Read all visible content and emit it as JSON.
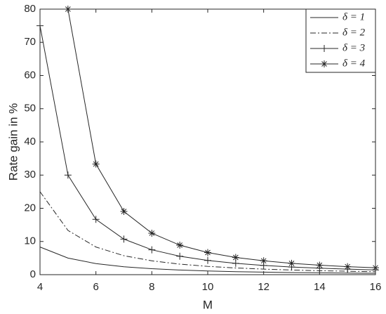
{
  "chart_data": {
    "type": "line",
    "x_label": "M",
    "y_label": "Rate gain in %",
    "x": [
      4,
      5,
      6,
      7,
      8,
      9,
      10,
      11,
      12,
      13,
      14,
      15,
      16
    ],
    "series": [
      {
        "name": "δ = 1",
        "color": "#262626",
        "style": "solid",
        "marker": "none",
        "values": [
          8.33,
          5,
          3.33,
          2.38,
          1.79,
          1.39,
          1.11,
          0.91,
          0.76,
          0.64,
          0.55,
          0.48,
          0.42
        ]
      },
      {
        "name": "δ = 2",
        "color": "#262626",
        "style": "dashdot",
        "marker": "none",
        "values": [
          25,
          13.33,
          8.33,
          5.71,
          4.17,
          3.17,
          2.5,
          2.02,
          1.67,
          1.4,
          1.19,
          1.03,
          0.89
        ]
      },
      {
        "name": "δ = 3",
        "color": "#262626",
        "style": "solid",
        "marker": "plus",
        "values": [
          75,
          30,
          16.67,
          10.71,
          7.5,
          5.56,
          4.29,
          3.41,
          2.78,
          2.31,
          1.95,
          1.67,
          1.44
        ]
      },
      {
        "name": "δ = 4",
        "color": "#262626",
        "style": "solid",
        "marker": "star",
        "values": [
          null,
          80,
          33.33,
          19.05,
          12.5,
          8.89,
          6.67,
          5.19,
          4.17,
          3.42,
          2.86,
          2.42,
          2.08
        ]
      }
    ],
    "xlim": [
      4,
      16
    ],
    "xticks": [
      4,
      6,
      8,
      10,
      12,
      14,
      16
    ],
    "ylim": [
      0,
      80
    ],
    "yticks": [
      0,
      10,
      20,
      30,
      40,
      50,
      60,
      70,
      80
    ],
    "grid": false,
    "legend": "upper right"
  }
}
